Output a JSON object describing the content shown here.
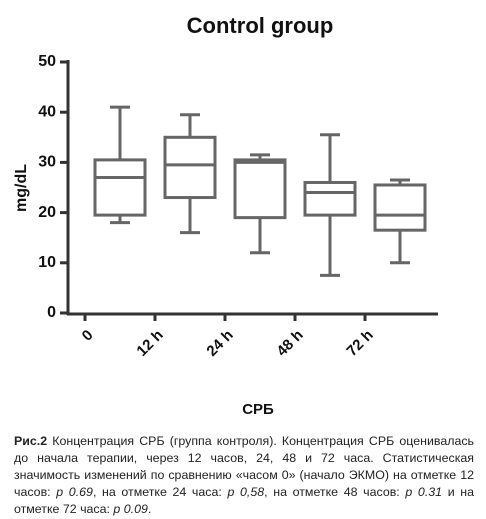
{
  "chart_data": {
    "type": "box",
    "title": "Control group",
    "ylabel": "mg/dL",
    "xlabel": "СРБ",
    "categories": [
      "0",
      "12 h",
      "24 h",
      "48 h",
      "72 h"
    ],
    "boxes": [
      {
        "min": 18,
        "q1": 19.5,
        "median": 27,
        "q3": 30.5,
        "max": 41
      },
      {
        "min": 16,
        "q1": 23,
        "median": 29.5,
        "q3": 35,
        "max": 39.5
      },
      {
        "min": 12,
        "q1": 19,
        "median": 30,
        "q3": 30.5,
        "max": 31.5
      },
      {
        "min": 7.5,
        "q1": 19.5,
        "median": 24,
        "q3": 26,
        "max": 35.5
      },
      {
        "min": 10,
        "q1": 16.5,
        "median": 19.5,
        "q3": 25.5,
        "max": 26.5
      }
    ],
    "color": "#666666",
    "ylim": [
      0,
      50
    ],
    "yticks": [
      0,
      10,
      20,
      30,
      40,
      50
    ]
  },
  "caption": {
    "parts": [
      "Рис.2",
      " Концентрация СРБ (группа контроля). Концентрация СРБ оценивалась до начала терапии, через 12 часов, 24, 48 и 72 часа. Статистическая значимость изменений по сравнению «часом 0» (начало ЭКМО) на отметке 12 часов: ",
      "p 0.69",
      ", на отметке 24 часа: ",
      "p 0,58",
      ", на отметке 48 часов: ",
      "p 0.31",
      " и на отметке 72 часа: ",
      "p 0.09",
      "."
    ]
  }
}
